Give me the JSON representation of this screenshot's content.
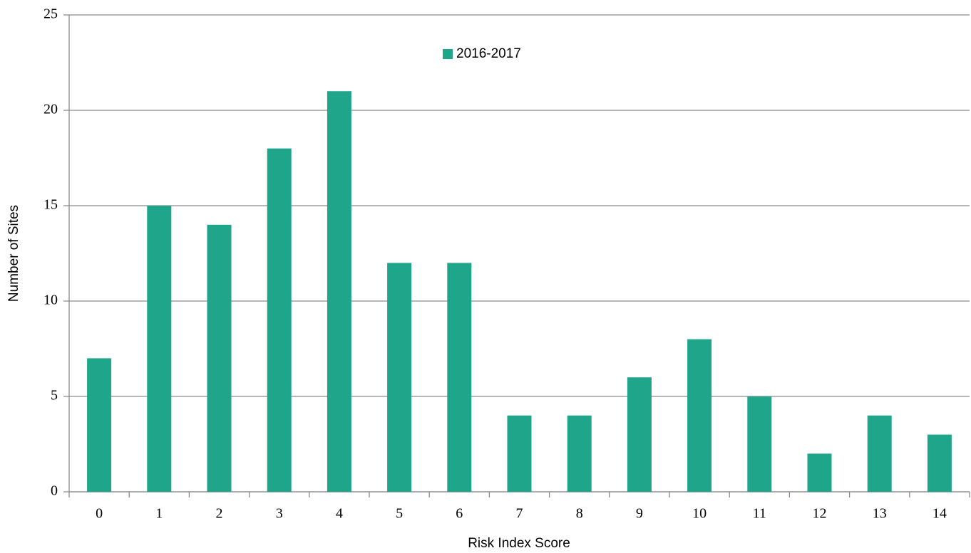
{
  "chart_data": {
    "type": "bar",
    "categories": [
      "0",
      "1",
      "2",
      "3",
      "4",
      "5",
      "6",
      "7",
      "8",
      "9",
      "10",
      "11",
      "12",
      "13",
      "14"
    ],
    "series": [
      {
        "name": "2016-2017",
        "color": "#1fa589",
        "values": [
          7,
          15,
          14,
          18,
          21,
          12,
          12,
          4,
          4,
          6,
          8,
          5,
          2,
          4,
          3
        ]
      }
    ],
    "x_label": "Risk Index Score",
    "y_label": "Number of Sites",
    "ylim": [
      0,
      25
    ],
    "yticks": [
      0,
      5,
      10,
      15,
      20,
      25
    ],
    "grid": true,
    "legend": "top"
  }
}
